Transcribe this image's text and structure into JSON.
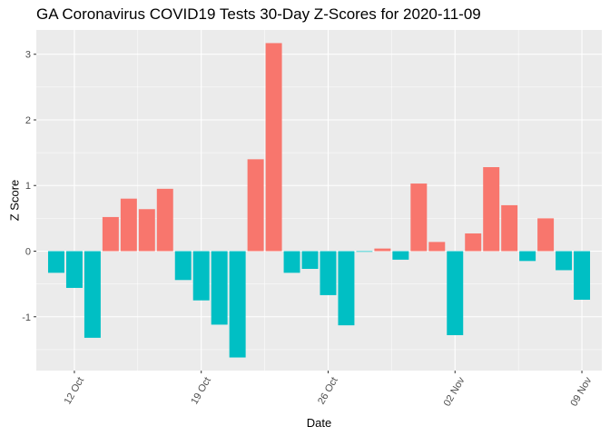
{
  "chart_data": {
    "type": "bar",
    "title": "GA Coronavirus COVID19 Tests 30-Day Z-Scores for 2020-11-09",
    "xlabel": "Date",
    "ylabel": "Z Score",
    "x_type": "date",
    "x_ticks": [
      {
        "date": "2020-10-12",
        "label": "12 Oct"
      },
      {
        "date": "2020-10-19",
        "label": "19 Oct"
      },
      {
        "date": "2020-10-26",
        "label": "26 Oct"
      },
      {
        "date": "2020-11-02",
        "label": "02 Nov"
      },
      {
        "date": "2020-11-09",
        "label": "09 Nov"
      }
    ],
    "y_ticks": [
      -1,
      0,
      1,
      2,
      3
    ],
    "ylim": [
      -1.82,
      3.37
    ],
    "grid": true,
    "legend": "none",
    "colors": {
      "positive": "#f8766d",
      "negative": "#00bfc4",
      "panel": "#ebebeb",
      "grid": "#ffffff"
    },
    "x": [
      "2020-10-11",
      "2020-10-12",
      "2020-10-13",
      "2020-10-14",
      "2020-10-15",
      "2020-10-16",
      "2020-10-17",
      "2020-10-18",
      "2020-10-19",
      "2020-10-20",
      "2020-10-21",
      "2020-10-22",
      "2020-10-23",
      "2020-10-24",
      "2020-10-25",
      "2020-10-26",
      "2020-10-27",
      "2020-10-28",
      "2020-10-29",
      "2020-10-30",
      "2020-10-31",
      "2020-11-01",
      "2020-11-02",
      "2020-11-03",
      "2020-11-04",
      "2020-11-05",
      "2020-11-06",
      "2020-11-07",
      "2020-11-08",
      "2020-11-09"
    ],
    "values": [
      -0.33,
      -0.56,
      -1.32,
      0.52,
      0.8,
      0.64,
      0.95,
      -0.44,
      -0.75,
      -1.12,
      -1.62,
      1.4,
      3.17,
      -0.33,
      -0.27,
      -0.67,
      -1.13,
      -0.01,
      0.04,
      -0.13,
      1.03,
      0.14,
      -1.28,
      0.27,
      1.28,
      0.7,
      -0.15,
      0.5,
      -0.29,
      -0.74
    ]
  }
}
